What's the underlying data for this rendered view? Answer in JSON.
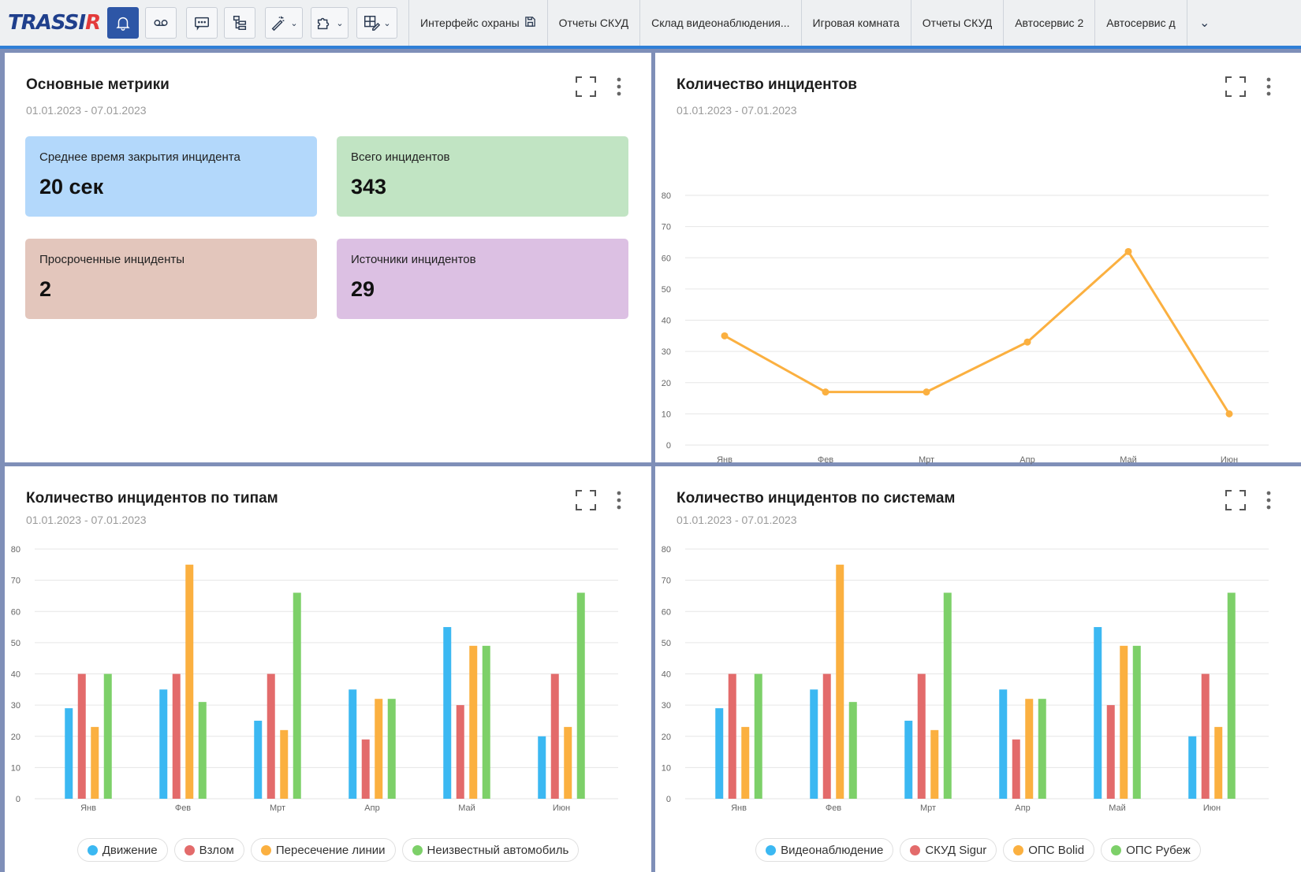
{
  "app": {
    "logo_main": "TRASSI",
    "logo_accent": "R"
  },
  "toolbar": {
    "buttons": [
      {
        "icon": "bell-icon",
        "active": true
      },
      {
        "icon": "voicemail-icon",
        "active": false
      },
      {
        "icon": "message-icon",
        "active": false
      },
      {
        "icon": "hierarchy-icon",
        "active": false
      },
      {
        "icon": "magic-wand-icon",
        "active": false,
        "dropdown": true
      },
      {
        "icon": "puzzle-icon",
        "active": false,
        "dropdown": true
      },
      {
        "icon": "layout-edit-icon",
        "active": false,
        "dropdown": true
      }
    ],
    "tabs": [
      {
        "label": "Интерфейс охраны",
        "icon": "save-icon"
      },
      {
        "label": "Отчеты СКУД"
      },
      {
        "label": "Склад видеонаблюдения..."
      },
      {
        "label": "Игровая  комната"
      },
      {
        "label": "Отчеты СКУД"
      },
      {
        "label": "Автосервис 2"
      },
      {
        "label": "Автосервис д"
      }
    ]
  },
  "metrics_panel": {
    "title": "Основные метрики",
    "date": "01.01.2023 - 07.01.2023",
    "cards": [
      {
        "label": "Среднее время закрытия инцидента",
        "value": "20 сек",
        "color": "#b3d8fb"
      },
      {
        "label": "Всего инцидентов",
        "value": "343",
        "color": "#c1e4c3"
      },
      {
        "label": "Просроченные инциденты",
        "value": "2",
        "color": "#e3c6bc"
      },
      {
        "label": "Источники инцидентов",
        "value": "29",
        "color": "#dcc0e3"
      }
    ]
  },
  "line_panel": {
    "title": "Количество инцидентов",
    "date": "01.01.2023 - 07.01.2023"
  },
  "types_panel": {
    "title": "Количество инцидентов по типам",
    "date": "01.01.2023 - 07.01.2023"
  },
  "systems_panel": {
    "title": "Количество инцидентов  по системам",
    "date": "01.01.2023 - 07.01.2023"
  },
  "chart_data": [
    {
      "type": "line",
      "categories": [
        "Янв",
        "Фев",
        "Мрт",
        "Апр",
        "Май",
        "Июн"
      ],
      "series": [
        {
          "values": [
            35,
            17,
            17,
            33,
            62,
            10
          ],
          "color": "#fbb040"
        }
      ],
      "ylim": [
        0,
        80
      ],
      "yticks": [
        0,
        10,
        20,
        30,
        40,
        50,
        60,
        70,
        80
      ],
      "grid": true
    },
    {
      "type": "bar",
      "categories": [
        "Янв",
        "Фев",
        "Мрт",
        "Апр",
        "Май",
        "Июн"
      ],
      "series": [
        {
          "name": "Движение",
          "color": "#3bb8f2",
          "values": [
            29,
            35,
            25,
            35,
            55,
            20
          ]
        },
        {
          "name": "Взлом",
          "color": "#e36b6b",
          "values": [
            40,
            40,
            40,
            19,
            30,
            40
          ]
        },
        {
          "name": "Пересечение линии",
          "color": "#fbb040",
          "values": [
            23,
            75,
            22,
            32,
            49,
            23
          ]
        },
        {
          "name": "Неизвестный автомобиль",
          "color": "#7dd069",
          "values": [
            40,
            31,
            66,
            32,
            49,
            66
          ]
        }
      ],
      "ylim": [
        0,
        80
      ],
      "yticks": [
        0,
        10,
        20,
        30,
        40,
        50,
        60,
        70,
        80
      ],
      "grid": true,
      "legend": "bottom"
    },
    {
      "type": "bar",
      "categories": [
        "Янв",
        "Фев",
        "Мрт",
        "Апр",
        "Май",
        "Июн"
      ],
      "series": [
        {
          "name": "Видеонаблюдение",
          "color": "#3bb8f2",
          "values": [
            29,
            35,
            25,
            35,
            55,
            20
          ]
        },
        {
          "name": "СКУД Sigur",
          "color": "#e36b6b",
          "values": [
            40,
            40,
            40,
            19,
            30,
            40
          ]
        },
        {
          "name": "ОПС Bolid",
          "color": "#fbb040",
          "values": [
            23,
            75,
            22,
            32,
            49,
            23
          ]
        },
        {
          "name": "ОПС Рубеж",
          "color": "#7dd069",
          "values": [
            40,
            31,
            66,
            32,
            49,
            66
          ]
        }
      ],
      "ylim": [
        0,
        80
      ],
      "yticks": [
        0,
        10,
        20,
        30,
        40,
        50,
        60,
        70,
        80
      ],
      "grid": true,
      "legend": "bottom"
    }
  ]
}
